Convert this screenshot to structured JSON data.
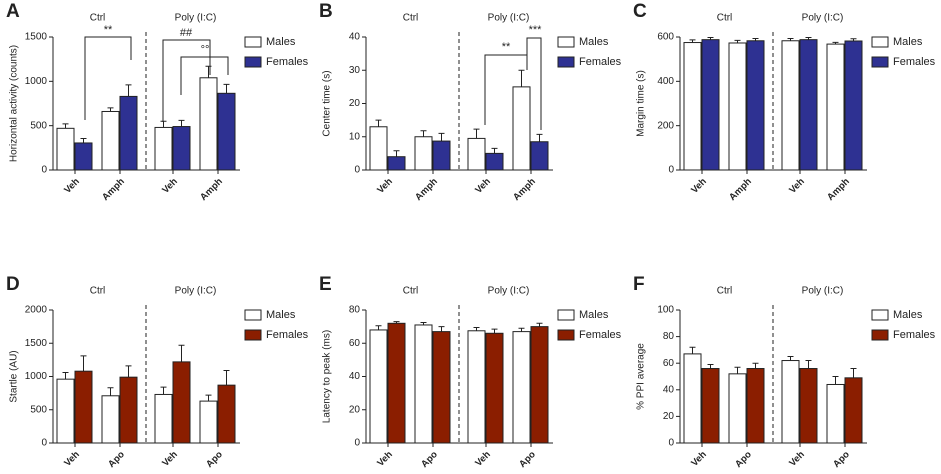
{
  "chart_data": [
    {
      "type": "bar",
      "panel": "A",
      "ylabel": "Horizontal activity (counts)",
      "groups": [
        "Ctrl",
        "Poly (I:C)"
      ],
      "categories": [
        "Veh",
        "Amph",
        "Veh",
        "Amph"
      ],
      "ylim": [
        0,
        1500
      ],
      "yticks": [
        0,
        500,
        1000,
        1500
      ],
      "series": [
        {
          "name": "Males",
          "color": "#ffffff",
          "values": [
            470,
            660,
            480,
            1040
          ],
          "errors": [
            50,
            40,
            70,
            130
          ]
        },
        {
          "name": "Females",
          "color": "#2e3192",
          "values": [
            305,
            830,
            490,
            865
          ],
          "errors": [
            50,
            130,
            70,
            100
          ]
        }
      ],
      "annotations": [
        "**",
        "##",
        "°°"
      ]
    },
    {
      "type": "bar",
      "panel": "B",
      "ylabel": "Center time (s)",
      "groups": [
        "Ctrl",
        "Poly (I:C)"
      ],
      "categories": [
        "Veh",
        "Amph",
        "Veh",
        "Amph"
      ],
      "ylim": [
        0,
        40
      ],
      "yticks": [
        0,
        10,
        20,
        30,
        40
      ],
      "series": [
        {
          "name": "Males",
          "color": "#ffffff",
          "values": [
            13,
            10,
            9.5,
            25
          ],
          "errors": [
            2,
            1.8,
            2.8,
            5
          ]
        },
        {
          "name": "Females",
          "color": "#2e3192",
          "values": [
            4,
            8.7,
            5,
            8.5
          ],
          "errors": [
            1.8,
            2.3,
            1.5,
            2.2
          ]
        }
      ],
      "annotations": [
        "**",
        "***"
      ]
    },
    {
      "type": "bar",
      "panel": "C",
      "ylabel": "Margin time (s)",
      "groups": [
        "Ctrl",
        "Poly (I:C)"
      ],
      "categories": [
        "Veh",
        "Amph",
        "Veh",
        "Amph"
      ],
      "ylim": [
        0,
        600
      ],
      "yticks": [
        0,
        200,
        400,
        600
      ],
      "series": [
        {
          "name": "Males",
          "color": "#ffffff",
          "values": [
            575,
            573,
            583,
            568
          ],
          "errors": [
            12,
            12,
            10,
            8
          ]
        },
        {
          "name": "Females",
          "color": "#2e3192",
          "values": [
            588,
            583,
            588,
            582
          ],
          "errors": [
            10,
            10,
            10,
            10
          ]
        }
      ]
    },
    {
      "type": "bar",
      "panel": "D",
      "ylabel": "Startle (AU)",
      "groups": [
        "Ctrl",
        "Poly (I:C)"
      ],
      "categories": [
        "Veh",
        "Apo",
        "Veh",
        "Apo"
      ],
      "ylim": [
        0,
        2000
      ],
      "yticks": [
        0,
        500,
        1000,
        1500,
        2000
      ],
      "series": [
        {
          "name": "Males",
          "color": "#ffffff",
          "values": [
            960,
            710,
            730,
            630
          ],
          "errors": [
            100,
            120,
            110,
            90
          ]
        },
        {
          "name": "Females",
          "color": "#8b1e00",
          "values": [
            1080,
            990,
            1220,
            870
          ],
          "errors": [
            230,
            170,
            250,
            220
          ]
        }
      ]
    },
    {
      "type": "bar",
      "panel": "E",
      "ylabel": "Latency to peak (ms)",
      "groups": [
        "Ctrl",
        "Poly (I:C)"
      ],
      "categories": [
        "Veh",
        "Apo",
        "Veh",
        "Apo"
      ],
      "ylim": [
        0,
        80
      ],
      "yticks": [
        0,
        20,
        40,
        60,
        80
      ],
      "series": [
        {
          "name": "Males",
          "color": "#ffffff",
          "values": [
            68,
            71,
            67.5,
            67
          ],
          "errors": [
            2.5,
            1.5,
            2,
            2
          ]
        },
        {
          "name": "Females",
          "color": "#8b1e00",
          "values": [
            72,
            67,
            66,
            70
          ],
          "errors": [
            1,
            3,
            2.5,
            2
          ]
        }
      ]
    },
    {
      "type": "bar",
      "panel": "F",
      "ylabel": "% PPI average",
      "groups": [
        "Ctrl",
        "Poly (I:C)"
      ],
      "categories": [
        "Veh",
        "Apo",
        "Veh",
        "Apo"
      ],
      "ylim": [
        0,
        100
      ],
      "yticks": [
        0,
        20,
        40,
        60,
        80,
        100
      ],
      "series": [
        {
          "name": "Males",
          "color": "#ffffff",
          "values": [
            67,
            52,
            62,
            44
          ],
          "errors": [
            5,
            5,
            3,
            6
          ]
        },
        {
          "name": "Females",
          "color": "#8b1e00",
          "values": [
            56,
            56,
            56,
            49
          ],
          "errors": [
            3,
            4,
            6,
            7
          ]
        }
      ]
    }
  ]
}
